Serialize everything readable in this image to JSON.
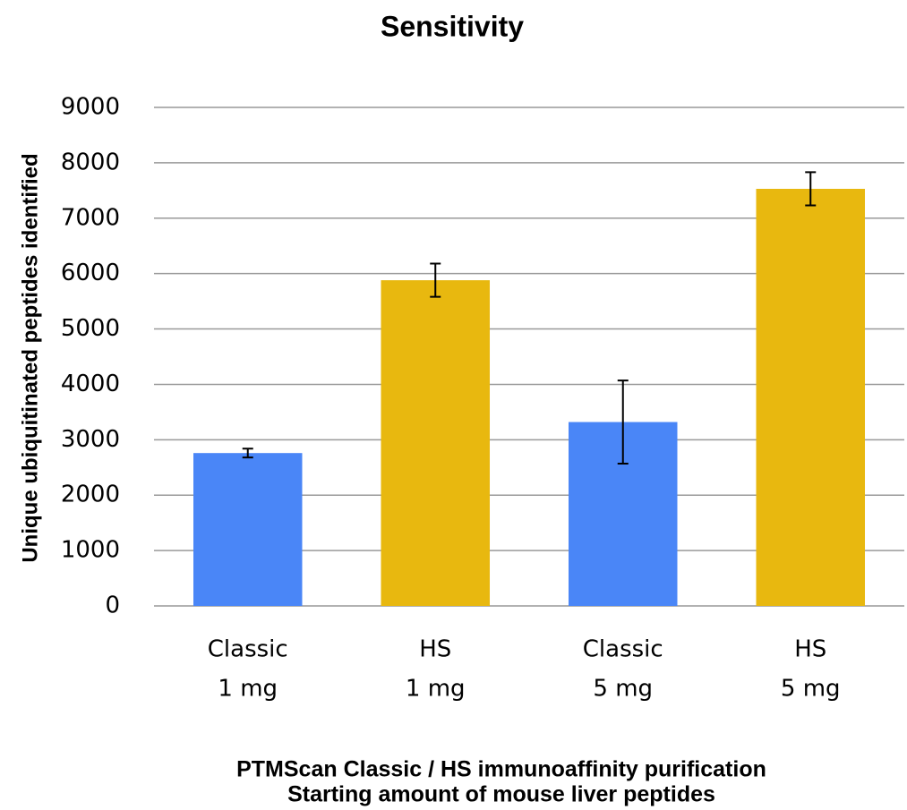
{
  "chart_data": {
    "type": "bar",
    "title": "Sensitivity",
    "categories": [
      [
        "Classic",
        "1 mg"
      ],
      [
        "HS",
        "1 mg"
      ],
      [
        "Classic",
        "5 mg"
      ],
      [
        "HS",
        "5 mg"
      ]
    ],
    "values": [
      2760,
      5880,
      3320,
      7530
    ],
    "errors": [
      80,
      300,
      750,
      300
    ],
    "colors": [
      "#4a86f7",
      "#e8b80f",
      "#4a86f7",
      "#e8b80f"
    ],
    "xlabel": [
      "PTMScan Classic / HS immunoaffinity purification",
      "Starting amount of mouse liver peptides"
    ],
    "ylabel": "Unique ubiquitinated peptides identified",
    "ylim": [
      0,
      9000
    ],
    "yticks": [
      0,
      1000,
      2000,
      3000,
      4000,
      5000,
      6000,
      7000,
      8000,
      9000
    ],
    "grid": true
  }
}
